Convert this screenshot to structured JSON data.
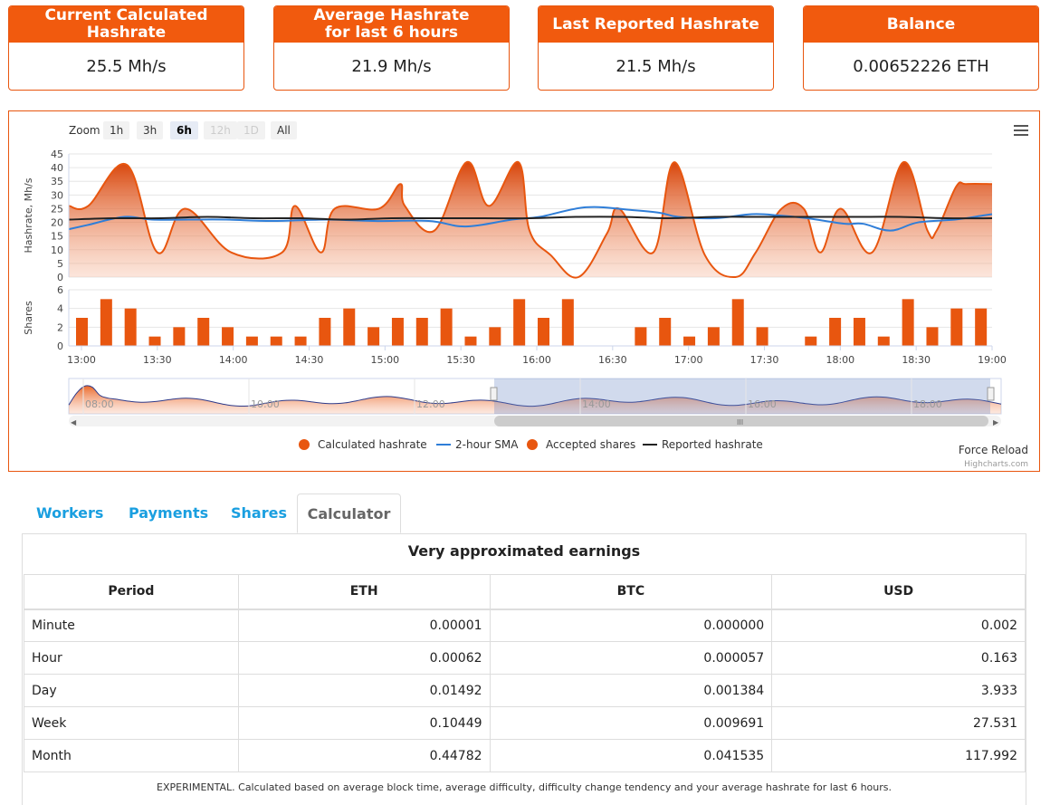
{
  "cards": [
    {
      "title_line1": "Current Calculated",
      "title_line2": "Hashrate",
      "value": "25.5 Mh/s"
    },
    {
      "title_line1": "Average Hashrate",
      "title_line2": "for last 6 hours",
      "value": "21.9 Mh/s"
    },
    {
      "title_line1": "Last Reported Hashrate",
      "title_line2": "",
      "value": "21.5 Mh/s"
    },
    {
      "title_line1": "Balance",
      "title_line2": "",
      "value": "0.00652226 ETH"
    }
  ],
  "chart": {
    "zoom_label": "Zoom",
    "zoom_buttons": [
      "1h",
      "3h",
      "6h",
      "12h",
      "1D",
      "All"
    ],
    "zoom_selected": "6h",
    "force_reload": "Force Reload",
    "credits": "Highcharts.com",
    "menu_icon": "hamburger-menu-icon"
  },
  "chart_data": {
    "type": "area",
    "x_ticks": [
      "13:00",
      "13:30",
      "14:00",
      "14:30",
      "15:00",
      "15:30",
      "16:00",
      "16:30",
      "17:00",
      "17:30",
      "18:00",
      "18:30",
      "19:00"
    ],
    "hashrate_axis": {
      "label": "Hashrate, Mh/s",
      "ticks": [
        0,
        5,
        10,
        15,
        20,
        25,
        30,
        35,
        40,
        45
      ],
      "range": [
        0,
        45
      ]
    },
    "shares_axis": {
      "label": "Shares",
      "ticks": [
        0,
        2,
        4,
        6
      ],
      "range": [
        0,
        6
      ]
    },
    "series": [
      {
        "name": "Calculated hashrate",
        "color": "#e8560f",
        "kind": "area",
        "x": [
          0,
          2.1,
          6.3,
          9.6,
          12.6,
          17.6,
          23.1,
          24.5,
          27.3,
          28.8,
          33.6,
          35.9,
          36.4,
          39.6,
          43.1,
          45.5,
          48.7,
          49.9,
          52.2,
          55.2,
          58.3,
          59.6,
          63.3,
          65.6,
          68.9,
          72.2,
          74.4,
          77.2,
          79.6,
          81.4,
          83.6,
          87.0,
          90.4,
          93.0,
          94.0,
          96.1,
          97.2,
          100
        ],
        "y": [
          26,
          26,
          41,
          9,
          25,
          9,
          9,
          26,
          9,
          25,
          25,
          34,
          26,
          17,
          42,
          26,
          42,
          17,
          8,
          0,
          16,
          25,
          9,
          42,
          8,
          0,
          9,
          25,
          25,
          9,
          25,
          9,
          42,
          17,
          17,
          33,
          34,
          34
        ]
      },
      {
        "name": "2-hour SMA",
        "color": "#2f7ed8",
        "kind": "line",
        "x": [
          0,
          2,
          6,
          9,
          13,
          17,
          22,
          28,
          33,
          39,
          43,
          48,
          51,
          56,
          61,
          64,
          66,
          70,
          74,
          77,
          80,
          84,
          86,
          89,
          92,
          96,
          99,
          100
        ],
        "y": [
          17.5,
          19,
          22,
          21,
          21,
          21,
          20.5,
          21,
          20.5,
          20.5,
          18.5,
          21,
          22,
          25.5,
          24.5,
          23.5,
          22,
          21.5,
          23,
          22.5,
          21.5,
          19.5,
          19.5,
          17,
          20,
          21,
          22.5,
          23
        ]
      },
      {
        "name": "Accepted shares",
        "color": "#e8560f",
        "kind": "column",
        "values": [
          3,
          5,
          4,
          1,
          2,
          3,
          2,
          1,
          1,
          1,
          3,
          4,
          2,
          3,
          3,
          4,
          1,
          2,
          5,
          3,
          5,
          0,
          0,
          2,
          3,
          1,
          2,
          5,
          2,
          0,
          1,
          3,
          3,
          1,
          5,
          2,
          4,
          4
        ]
      },
      {
        "name": "Reported hashrate",
        "color": "#222222",
        "kind": "line",
        "x": [
          0,
          5,
          10,
          15,
          20,
          25,
          30,
          35,
          40,
          45,
          50,
          55,
          60,
          65,
          70,
          75,
          80,
          85,
          90,
          95,
          100
        ],
        "y": [
          21,
          21.5,
          21.5,
          22,
          21.5,
          21.5,
          21,
          21.5,
          21.5,
          21.5,
          21.5,
          22,
          22,
          21.5,
          22,
          22,
          22,
          22,
          22,
          21.5,
          21.5
        ]
      }
    ],
    "navigator_ticks": [
      "08:00",
      "10:00",
      "12:00",
      "14:00",
      "16:00",
      "18:00"
    ],
    "legend": [
      "Calculated hashrate",
      "2-hour SMA",
      "Accepted shares",
      "Reported hashrate"
    ],
    "legend_position": "bottom-center"
  },
  "tabs": [
    {
      "label": "Workers",
      "active": false
    },
    {
      "label": "Payments",
      "active": false
    },
    {
      "label": "Shares",
      "active": false
    },
    {
      "label": "Calculator",
      "active": true
    }
  ],
  "calculator": {
    "title": "Very approximated earnings",
    "columns": [
      "Period",
      "ETH",
      "BTC",
      "USD"
    ],
    "rows": [
      [
        "Minute",
        "0.00001",
        "0.000000",
        "0.002"
      ],
      [
        "Hour",
        "0.00062",
        "0.000057",
        "0.163"
      ],
      [
        "Day",
        "0.01492",
        "0.001384",
        "3.933"
      ],
      [
        "Week",
        "0.10449",
        "0.009691",
        "27.531"
      ],
      [
        "Month",
        "0.44782",
        "0.041535",
        "117.992"
      ]
    ],
    "footnote": "EXPERIMENTAL. Calculated based on average block time, average difficulty, difficulty change tendency and your average hashrate for last 6 hours."
  }
}
